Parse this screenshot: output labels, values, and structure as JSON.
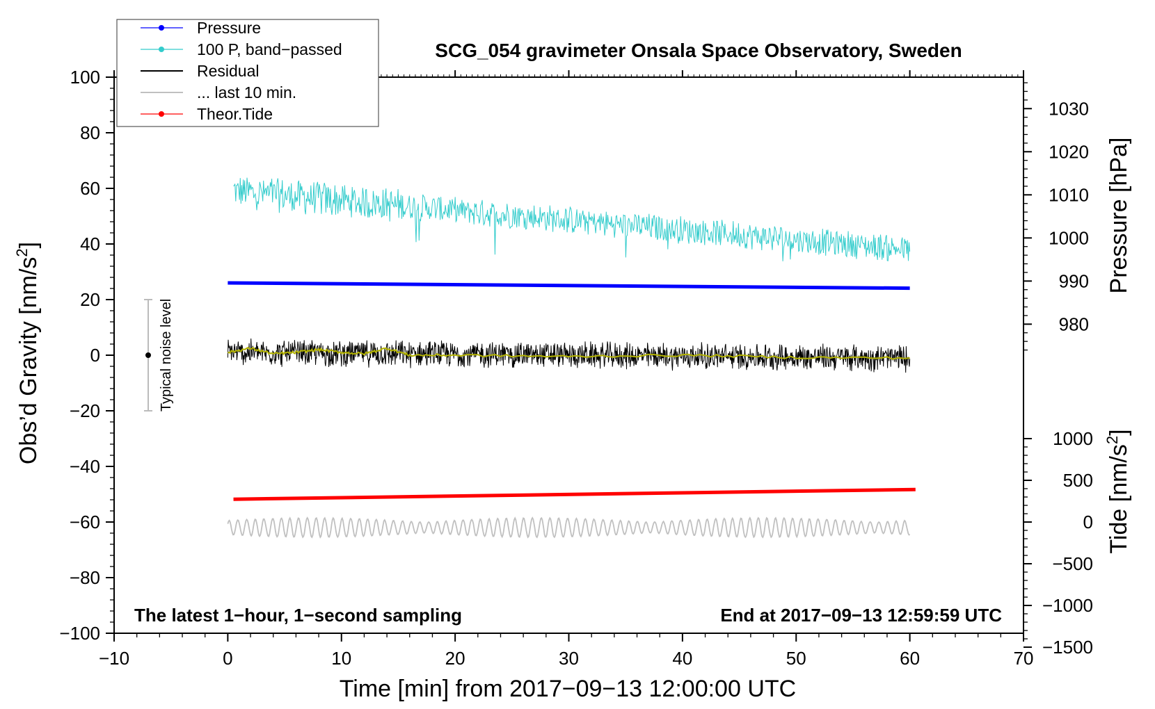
{
  "chart_data": {
    "type": "line",
    "title": "SCG_054 gravimeter Onsala Space Observatory, Sweden",
    "xlabel": "Time [min] from 2017−09−13 12:00:00 UTC",
    "ylabel_left": "Obs’d Gravity [nm/s",
    "ylabel_left_sup": "2",
    "ylabel_left_close": "]",
    "ylabel_right_top": "Pressure [hPa]",
    "ylabel_right_bottom": "Tide [nm/s",
    "ylabel_right_bottom_sup": "2",
    "ylabel_right_bottom_close": "]",
    "xlim": [
      -10,
      70
    ],
    "ylim_left": [
      -100,
      100
    ],
    "x_ticks": [
      {
        "v": -10,
        "label": "−10"
      },
      {
        "v": 0,
        "label": "0"
      },
      {
        "v": 10,
        "label": "10"
      },
      {
        "v": 20,
        "label": "20"
      },
      {
        "v": 30,
        "label": "30"
      },
      {
        "v": 40,
        "label": "40"
      },
      {
        "v": 50,
        "label": "50"
      },
      {
        "v": 60,
        "label": "60"
      },
      {
        "v": 70,
        "label": "70"
      }
    ],
    "y_ticks_left": [
      {
        "v": 100,
        "label": "100"
      },
      {
        "v": 80,
        "label": "80"
      },
      {
        "v": 60,
        "label": "60"
      },
      {
        "v": 40,
        "label": "40"
      },
      {
        "v": 20,
        "label": "20"
      },
      {
        "v": 0,
        "label": "0"
      },
      {
        "v": -20,
        "label": "−20"
      },
      {
        "v": -40,
        "label": "−40"
      },
      {
        "v": -60,
        "label": "−60"
      },
      {
        "v": -80,
        "label": "−80"
      },
      {
        "v": -100,
        "label": "−100"
      }
    ],
    "pressure_axis": {
      "hpa_at_gravity_0": 972.8,
      "hpa_per_nm": 0.645,
      "ticks": [
        {
          "v": 1030,
          "label": "1030"
        },
        {
          "v": 1020,
          "label": "1020"
        },
        {
          "v": 1010,
          "label": "1010"
        },
        {
          "v": 1000,
          "label": "1000"
        },
        {
          "v": 990,
          "label": "990"
        },
        {
          "v": 980,
          "label": "980"
        }
      ]
    },
    "tide_axis": {
      "tide_at_gravity_0": 2000,
      "tide_per_nm": 33.33,
      "ticks": [
        {
          "v": 1000,
          "label": "1000"
        },
        {
          "v": 500,
          "label": "500"
        },
        {
          "v": 0,
          "label": "0"
        },
        {
          "v": -500,
          "label": "−500"
        },
        {
          "v": -1000,
          "label": "−1000"
        },
        {
          "v": -1500,
          "label": "−1500"
        }
      ]
    },
    "series": [
      {
        "name": "Pressure",
        "color": "#0000ff",
        "kind": "thick-line",
        "x": [
          0,
          60
        ],
        "y": [
          26,
          24.1
        ]
      },
      {
        "name": "100 P, band−passed",
        "color": "#33cccc",
        "kind": "noisy",
        "x_start": 0.5,
        "x_end": 60,
        "y_start": 59,
        "y_end": 38,
        "amplitude": 4.5
      },
      {
        "name": "Residual",
        "color": "#000000",
        "kind": "noisy",
        "x_start": 0,
        "x_end": 60,
        "y_start": 1,
        "y_end": -1,
        "amplitude": 4.5
      },
      {
        "name": "Residual smoothed",
        "color": "#b3b300",
        "kind": "smooth",
        "x": [
          0,
          2,
          4,
          6,
          8,
          10,
          12,
          14,
          16,
          20,
          30,
          40,
          50,
          60
        ],
        "y": [
          1,
          2.5,
          0.5,
          1,
          2,
          1,
          0.5,
          2.5,
          0,
          0,
          -0.5,
          0,
          -0.8,
          -1
        ]
      },
      {
        "name": "... last 10 min.",
        "color": "#c0c0c0",
        "kind": "oscillating",
        "x_start": 0,
        "x_end": 60,
        "y_center": -62,
        "amplitude": 3.5
      },
      {
        "name": "Theor.Tide",
        "color": "#ff0000",
        "kind": "thick-line",
        "x": [
          0.5,
          60.5
        ],
        "y": [
          -51.8,
          -48.3
        ]
      }
    ],
    "noise_bar": {
      "x": -7,
      "center": 0,
      "low": -20,
      "high": 20,
      "label": "Typical noise level"
    },
    "annotation_left": "The latest 1−hour, 1−second sampling",
    "annotation_right": "End at 2017−09−13 12:59:59 UTC",
    "legend": [
      {
        "label": "Pressure",
        "color": "#0000ff",
        "marker": true
      },
      {
        "label": "100 P, band−passed",
        "color": "#33cccc",
        "marker": true
      },
      {
        "label": "Residual",
        "color": "#000000",
        "marker": false
      },
      {
        "label": "... last 10 min.",
        "color": "#c0c0c0",
        "marker": false
      },
      {
        "label": "Theor.Tide",
        "color": "#ff0000",
        "marker": true
      }
    ]
  }
}
